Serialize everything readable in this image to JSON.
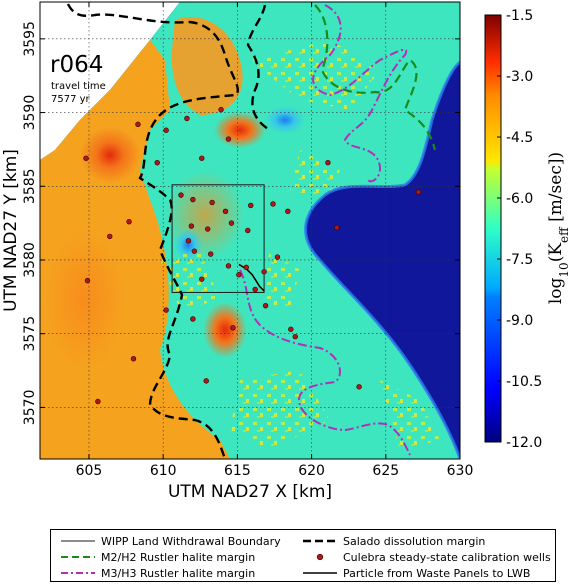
{
  "panel": {
    "realization": "r064",
    "annotation_line1": "travel time",
    "annotation_line2": "7577 yr"
  },
  "chart_data": {
    "type": "heatmap",
    "xlabel": "UTM NAD27 X [km]",
    "ylabel": "UTM NAD27 Y [km]",
    "xlim": [
      601.7,
      630.0
    ],
    "ylim": [
      3566.5,
      3597.5
    ],
    "xticks": [
      605,
      610,
      615,
      620,
      625,
      630
    ],
    "yticks": [
      3570,
      3575,
      3580,
      3585,
      3590,
      3595
    ],
    "grid": true,
    "colorbar": {
      "label_prefix": "log",
      "label_sub": "10",
      "label_mid": "(K",
      "label_k_sub": "eff",
      "label_units": " [m/sec])",
      "ticks": [
        "-1.5",
        "-3.0",
        "-4.5",
        "-6.0",
        "-7.5",
        "-9.0",
        "-10.5",
        "-12.0"
      ],
      "tick_values": [
        -1.5,
        -3.0,
        -4.5,
        -6.0,
        -7.5,
        -9.0,
        -10.5,
        -12.0
      ],
      "range": [
        -12.0,
        -1.5
      ]
    },
    "wipp_boundary": {
      "x": [
        610.6,
        616.8
      ],
      "y": [
        3577.8,
        3585.1
      ]
    },
    "calibration_wells": [
      [
        604.8,
        3586.9
      ],
      [
        606.4,
        3581.6
      ],
      [
        607.7,
        3582.6
      ],
      [
        608.3,
        3589.2
      ],
      [
        609.6,
        3586.6
      ],
      [
        610.2,
        3588.8
      ],
      [
        611.6,
        3589.6
      ],
      [
        613.9,
        3590.2
      ],
      [
        614.4,
        3588.2
      ],
      [
        612.6,
        3586.9
      ],
      [
        611.2,
        3584.4
      ],
      [
        612.0,
        3584.1
      ],
      [
        613.3,
        3583.9
      ],
      [
        614.2,
        3583.3
      ],
      [
        615.9,
        3583.7
      ],
      [
        617.4,
        3583.8
      ],
      [
        618.4,
        3583.3
      ],
      [
        621.1,
        3586.6
      ],
      [
        627.2,
        3584.6
      ],
      [
        611.9,
        3582.3
      ],
      [
        613.0,
        3582.1
      ],
      [
        614.6,
        3582.5
      ],
      [
        615.7,
        3582.0
      ],
      [
        611.7,
        3581.3
      ],
      [
        612.1,
        3580.6
      ],
      [
        613.2,
        3580.4
      ],
      [
        614.4,
        3579.6
      ],
      [
        615.6,
        3579.5
      ],
      [
        616.8,
        3579.2
      ],
      [
        617.7,
        3580.2
      ],
      [
        612.6,
        3578.7
      ],
      [
        610.2,
        3576.6
      ],
      [
        612.0,
        3576.0
      ],
      [
        614.7,
        3575.4
      ],
      [
        618.9,
        3574.8
      ],
      [
        616.9,
        3576.9
      ],
      [
        615.1,
        3579.0
      ],
      [
        616.2,
        3578.0
      ],
      [
        608.0,
        3573.3
      ],
      [
        612.9,
        3571.8
      ],
      [
        605.6,
        3570.4
      ],
      [
        604.9,
        3578.6
      ],
      [
        618.6,
        3575.3
      ],
      [
        623.2,
        3571.4
      ],
      [
        621.7,
        3582.2
      ]
    ],
    "particle_path": [
      [
        615.1,
        3579.7
      ],
      [
        615.6,
        3579.4
      ],
      [
        616.0,
        3579.0
      ],
      [
        616.5,
        3578.2
      ],
      [
        616.8,
        3577.9
      ]
    ],
    "series": [
      {
        "name": "WIPP Land Withdrawal Boundary"
      },
      {
        "name": "M2/H2 Rustler halite margin"
      },
      {
        "name": "M3/H3 Rustler halite margin"
      },
      {
        "name": "Salado dissolution margin"
      },
      {
        "name": "Culebra steady-state calibration wells"
      },
      {
        "name": "Particle from Waste Panels to LWB"
      }
    ]
  },
  "colors": {
    "salado": "#000000",
    "m2h2": "#1a8a1a",
    "m3h3": "#b030b8",
    "well": "#b01818",
    "boundary": "#1a1a1a",
    "particle": "#000000",
    "background_low": "#00008f",
    "field_mid": "#39e6c4",
    "field_high": "#f59a1c"
  }
}
